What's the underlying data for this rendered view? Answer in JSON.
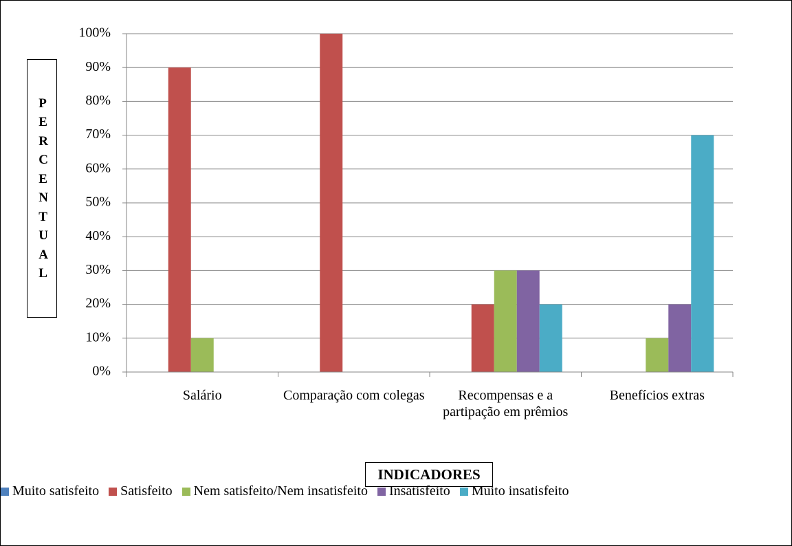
{
  "chart_data": {
    "type": "bar",
    "categories": [
      "Salário",
      "Comparação com colegas",
      "Recompensas e a partipação em prêmios",
      "Benefícios extras"
    ],
    "series": [
      {
        "name": "Muito satisfeito",
        "color": "#4f81bd",
        "values": [
          0,
          0,
          0,
          0
        ]
      },
      {
        "name": "Satisfeito",
        "color": "#c0504d",
        "values": [
          90,
          100,
          20,
          0
        ]
      },
      {
        "name": "Nem satisfeito/Nem insatisfeito",
        "color": "#9bbb59",
        "values": [
          10,
          0,
          30,
          10
        ]
      },
      {
        "name": "Insatisfeito",
        "color": "#8064a2",
        "values": [
          0,
          0,
          30,
          20
        ]
      },
      {
        "name": "Muito insatisfeito",
        "color": "#4bacc6",
        "values": [
          0,
          0,
          20,
          70
        ]
      }
    ],
    "ylim": [
      0,
      100
    ],
    "yticks": [
      {
        "value": 0,
        "label": "0%"
      },
      {
        "value": 10,
        "label": "10%"
      },
      {
        "value": 20,
        "label": "20%"
      },
      {
        "value": 30,
        "label": "30%"
      },
      {
        "value": 40,
        "label": "40%"
      },
      {
        "value": 50,
        "label": "50%"
      },
      {
        "value": 60,
        "label": "60%"
      },
      {
        "value": 70,
        "label": "70%"
      },
      {
        "value": 80,
        "label": "80%"
      },
      {
        "value": 90,
        "label": "90%"
      },
      {
        "value": 100,
        "label": "100%"
      }
    ],
    "ylabel": "PERCENTUAL",
    "xlabel": "INDICADORES",
    "grid": true,
    "legend": "bottom"
  }
}
